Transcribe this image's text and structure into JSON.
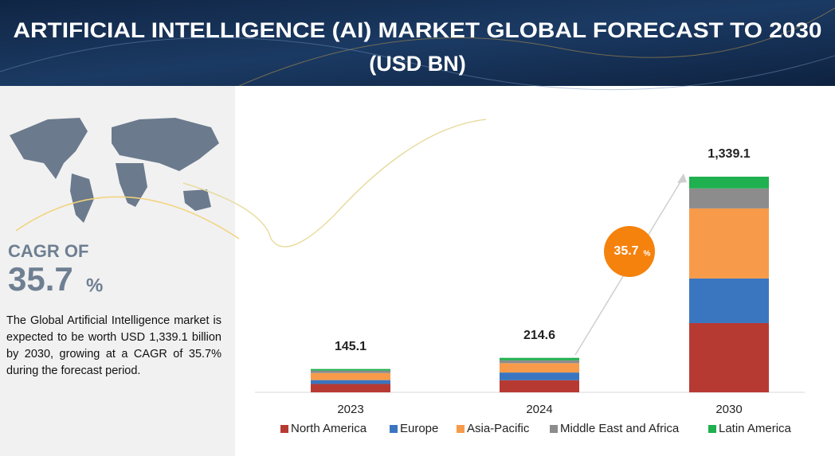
{
  "title_line1": "ARTIFICIAL INTELLIGENCE (AI) MARKET GLOBAL FORECAST TO 2030",
  "title_line2": "(USD BN)",
  "cagr_label": "CAGR OF",
  "cagr_value": "35.7",
  "cagr_unit": "%",
  "description": "The Global Artificial Intelligence market is expected to be worth USD 1,339.1 billion by 2030, growing at a CAGR of 35.7% during the forecast period.",
  "chart_data": {
    "type": "stacked-bar",
    "categories": [
      "2023",
      "2024",
      "2030"
    ],
    "series": [
      {
        "name": "North America",
        "color": "#b73a32",
        "values": [
          52,
          75,
          430
        ]
      },
      {
        "name": "Europe",
        "color": "#3a75c0",
        "values": [
          24,
          48,
          277
        ]
      },
      {
        "name": "Asia-Pacific",
        "color": "#f79b4a",
        "values": [
          44,
          58,
          435
        ]
      },
      {
        "name": "Middle East and Africa",
        "color": "#8c8c8c",
        "values": [
          15,
          18,
          124
        ]
      },
      {
        "name": "Latin America",
        "color": "#1fb04f",
        "values": [
          10,
          15,
          73
        ]
      }
    ],
    "totals": [
      145.1,
      214.6,
      1339.1
    ],
    "total_labels": [
      "145.1",
      "214.6",
      "1,339.1"
    ],
    "annotation": "35.7",
    "annotation_unit": "%",
    "legend": "bottom"
  }
}
